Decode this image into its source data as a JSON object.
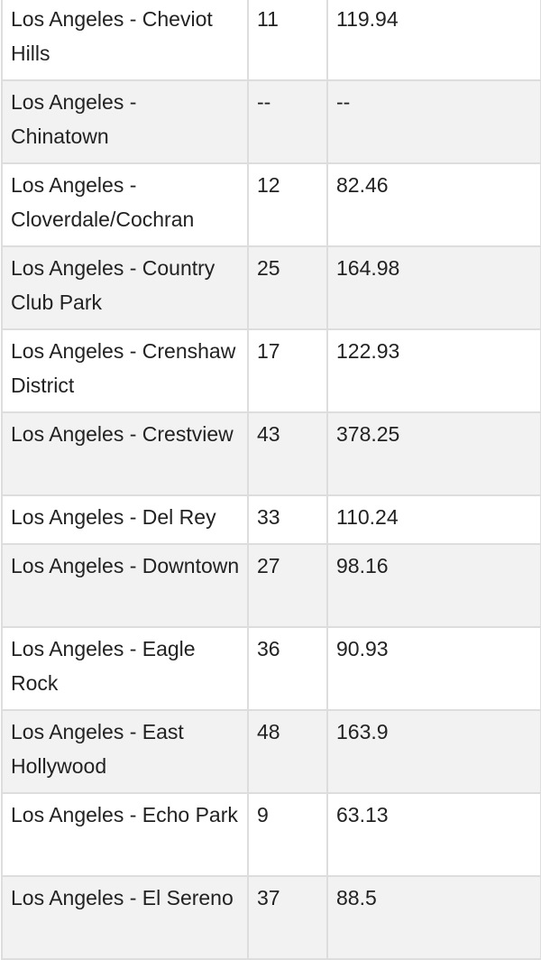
{
  "table": {
    "rows": [
      {
        "area": "Los Angeles - Cheviot Hills",
        "count": "11",
        "value": "119.94"
      },
      {
        "area": "Los Angeles - Chinatown",
        "count": "--",
        "value": "--"
      },
      {
        "area": "Los Angeles - Cloverdale/Cochran",
        "count": "12",
        "value": "82.46"
      },
      {
        "area": "Los Angeles - Country Club Park",
        "count": "25",
        "value": "164.98"
      },
      {
        "area": "Los Angeles - Crenshaw District",
        "count": "17",
        "value": "122.93"
      },
      {
        "area": "Los Angeles - Crestview",
        "count": "43",
        "value": "378.25"
      },
      {
        "area": "Los Angeles - Del Rey",
        "count": "33",
        "value": "110.24"
      },
      {
        "area": "Los Angeles - Downtown",
        "count": "27",
        "value": "98.16"
      },
      {
        "area": "Los Angeles - Eagle Rock",
        "count": "36",
        "value": "90.93"
      },
      {
        "area": "Los Angeles - East Hollywood",
        "count": "48",
        "value": "163.9"
      },
      {
        "area": "Los Angeles - Echo Park",
        "count": "9",
        "value": "63.13"
      },
      {
        "area": "Los Angeles - El Sereno",
        "count": "37",
        "value": "88.5"
      }
    ]
  }
}
